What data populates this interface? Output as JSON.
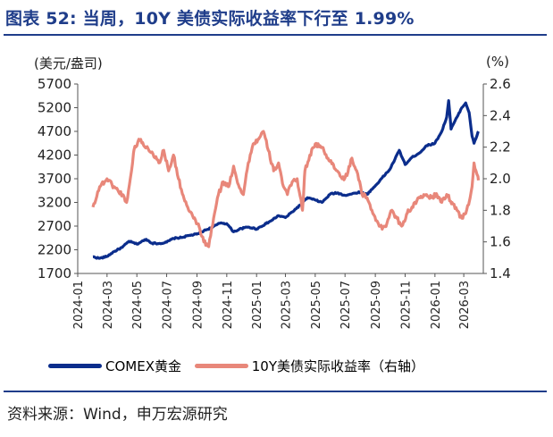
{
  "title": "图表 52: 当周，10Y 美债实际收益率下行至 1.99%",
  "source": "资料来源：Wind，申万宏源研究",
  "chart_data": {
    "type": "line",
    "left_unit": "(美元/盎司)",
    "right_unit": "(%)",
    "y_left": {
      "min": 1700,
      "max": 5700,
      "ticks": [
        1700,
        2200,
        2700,
        3200,
        3700,
        4200,
        4700,
        5200,
        5700
      ]
    },
    "y_right": {
      "min": 1.4,
      "max": 2.6,
      "ticks": [
        1.4,
        1.6,
        1.8,
        2.0,
        2.2,
        2.4,
        2.6
      ]
    },
    "x_ticks": [
      "2024-01",
      "2024-03",
      "2024-05",
      "2024-07",
      "2024-09",
      "2024-11",
      "2025-01",
      "2025-03",
      "2025-05",
      "2025-07",
      "2025-09",
      "2025-11",
      "2026-01",
      "2026-03"
    ],
    "legend_position": "bottom",
    "series": [
      {
        "name": "COMEX黄金",
        "axis": "left",
        "color": "#0b2d8c",
        "points": [
          [
            "2024-02-01",
            2050
          ],
          [
            "2024-02-15",
            2020
          ],
          [
            "2024-03-01",
            2060
          ],
          [
            "2024-03-15",
            2160
          ],
          [
            "2024-04-01",
            2250
          ],
          [
            "2024-04-15",
            2380
          ],
          [
            "2024-05-01",
            2320
          ],
          [
            "2024-05-20",
            2420
          ],
          [
            "2024-06-01",
            2340
          ],
          [
            "2024-06-15",
            2330
          ],
          [
            "2024-07-01",
            2360
          ],
          [
            "2024-07-15",
            2440
          ],
          [
            "2024-08-01",
            2460
          ],
          [
            "2024-08-15",
            2500
          ],
          [
            "2024-09-01",
            2530
          ],
          [
            "2024-09-15",
            2600
          ],
          [
            "2024-10-01",
            2670
          ],
          [
            "2024-10-20",
            2770
          ],
          [
            "2024-11-01",
            2750
          ],
          [
            "2024-11-15",
            2580
          ],
          [
            "2024-12-01",
            2650
          ],
          [
            "2024-12-15",
            2680
          ],
          [
            "2025-01-01",
            2640
          ],
          [
            "2025-01-20",
            2750
          ],
          [
            "2025-02-01",
            2820
          ],
          [
            "2025-02-15",
            2920
          ],
          [
            "2025-03-01",
            2880
          ],
          [
            "2025-03-15",
            3000
          ],
          [
            "2025-04-01",
            3150
          ],
          [
            "2025-04-15",
            3300
          ],
          [
            "2025-05-01",
            3250
          ],
          [
            "2025-05-15",
            3200
          ],
          [
            "2025-06-01",
            3380
          ],
          [
            "2025-06-15",
            3400
          ],
          [
            "2025-07-01",
            3350
          ],
          [
            "2025-07-15",
            3380
          ],
          [
            "2025-08-01",
            3420
          ],
          [
            "2025-08-15",
            3370
          ],
          [
            "2025-09-01",
            3550
          ],
          [
            "2025-09-15",
            3720
          ],
          [
            "2025-10-01",
            3900
          ],
          [
            "2025-10-20",
            4300
          ],
          [
            "2025-11-01",
            4000
          ],
          [
            "2025-11-15",
            4150
          ],
          [
            "2025-12-01",
            4250
          ],
          [
            "2025-12-15",
            4400
          ],
          [
            "2026-01-01",
            4450
          ],
          [
            "2026-01-15",
            4700
          ],
          [
            "2026-01-25",
            5000
          ],
          [
            "2026-01-29",
            5350
          ],
          [
            "2026-02-03",
            4750
          ],
          [
            "2026-02-15",
            5000
          ],
          [
            "2026-02-25",
            5200
          ],
          [
            "2026-03-05",
            5300
          ],
          [
            "2026-03-12",
            5100
          ],
          [
            "2026-03-18",
            4600
          ],
          [
            "2026-03-22",
            4450
          ],
          [
            "2026-03-26",
            4550
          ],
          [
            "2026-03-31",
            4700
          ]
        ]
      },
      {
        "name": "10Y美债实际收益率（右轴）",
        "axis": "right",
        "color": "#e8877a",
        "points": [
          [
            "2024-02-01",
            1.82
          ],
          [
            "2024-02-15",
            1.95
          ],
          [
            "2024-03-01",
            2.0
          ],
          [
            "2024-03-15",
            1.95
          ],
          [
            "2024-04-01",
            1.9
          ],
          [
            "2024-04-10",
            1.85
          ],
          [
            "2024-04-20",
            2.05
          ],
          [
            "2024-04-25",
            2.18
          ],
          [
            "2024-05-05",
            2.25
          ],
          [
            "2024-05-20",
            2.2
          ],
          [
            "2024-06-01",
            2.17
          ],
          [
            "2024-06-15",
            2.1
          ],
          [
            "2024-06-25",
            2.18
          ],
          [
            "2024-07-05",
            2.05
          ],
          [
            "2024-07-15",
            2.15
          ],
          [
            "2024-07-25",
            2.0
          ],
          [
            "2024-08-05",
            1.88
          ],
          [
            "2024-08-15",
            1.8
          ],
          [
            "2024-08-25",
            1.75
          ],
          [
            "2024-09-05",
            1.7
          ],
          [
            "2024-09-15",
            1.6
          ],
          [
            "2024-09-25",
            1.57
          ],
          [
            "2024-10-05",
            1.75
          ],
          [
            "2024-10-15",
            1.9
          ],
          [
            "2024-10-25",
            1.98
          ],
          [
            "2024-11-05",
            1.95
          ],
          [
            "2024-11-15",
            2.08
          ],
          [
            "2024-11-25",
            1.96
          ],
          [
            "2024-12-05",
            1.9
          ],
          [
            "2024-12-15",
            2.1
          ],
          [
            "2024-12-25",
            2.22
          ],
          [
            "2025-01-05",
            2.25
          ],
          [
            "2025-01-15",
            2.3
          ],
          [
            "2025-01-25",
            2.18
          ],
          [
            "2025-02-05",
            2.05
          ],
          [
            "2025-02-15",
            2.1
          ],
          [
            "2025-02-25",
            1.95
          ],
          [
            "2025-03-05",
            1.9
          ],
          [
            "2025-03-15",
            1.98
          ],
          [
            "2025-03-25",
            2.0
          ],
          [
            "2025-04-05",
            1.8
          ],
          [
            "2025-04-10",
            2.05
          ],
          [
            "2025-04-20",
            2.15
          ],
          [
            "2025-05-01",
            2.22
          ],
          [
            "2025-05-15",
            2.2
          ],
          [
            "2025-05-25",
            2.13
          ],
          [
            "2025-06-05",
            2.1
          ],
          [
            "2025-06-15",
            2.05
          ],
          [
            "2025-06-25",
            2.0
          ],
          [
            "2025-07-05",
            2.02
          ],
          [
            "2025-07-15",
            2.13
          ],
          [
            "2025-07-25",
            2.05
          ],
          [
            "2025-08-05",
            1.9
          ],
          [
            "2025-08-15",
            1.88
          ],
          [
            "2025-08-25",
            1.8
          ],
          [
            "2025-09-05",
            1.73
          ],
          [
            "2025-09-15",
            1.68
          ],
          [
            "2025-09-25",
            1.72
          ],
          [
            "2025-10-05",
            1.8
          ],
          [
            "2025-10-15",
            1.75
          ],
          [
            "2025-10-25",
            1.7
          ],
          [
            "2025-11-05",
            1.78
          ],
          [
            "2025-11-15",
            1.82
          ],
          [
            "2025-11-25",
            1.86
          ],
          [
            "2025-12-05",
            1.88
          ],
          [
            "2025-12-15",
            1.9
          ],
          [
            "2025-12-25",
            1.88
          ],
          [
            "2026-01-05",
            1.9
          ],
          [
            "2026-01-15",
            1.85
          ],
          [
            "2026-01-25",
            1.9
          ],
          [
            "2026-02-05",
            1.85
          ],
          [
            "2026-02-15",
            1.8
          ],
          [
            "2026-02-25",
            1.75
          ],
          [
            "2026-03-05",
            1.78
          ],
          [
            "2026-03-12",
            1.85
          ],
          [
            "2026-03-18",
            1.95
          ],
          [
            "2026-03-22",
            2.1
          ],
          [
            "2026-03-26",
            2.05
          ],
          [
            "2026-03-31",
            1.99
          ]
        ]
      }
    ]
  }
}
